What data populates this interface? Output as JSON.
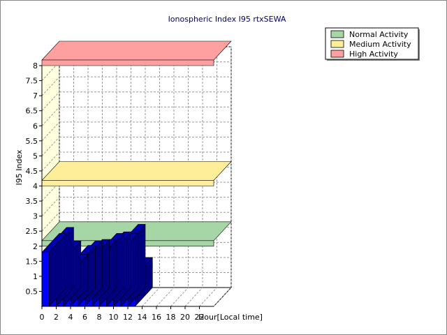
{
  "chart_data": {
    "type": "bar",
    "title": "Ionospheric Index I95 rtxSEWA",
    "xlabel": "Hour[Local time]",
    "ylabel": "I95 Index",
    "x_ticks": [
      "0",
      "2",
      "4",
      "6",
      "8",
      "10",
      "12",
      "14",
      "16",
      "18",
      "20",
      "22"
    ],
    "y_ticks": [
      "0.5",
      "1",
      "1.5",
      "2",
      "2.5",
      "3",
      "3.5",
      "4",
      "4.5",
      "5",
      "5.5",
      "6",
      "6.5",
      "7",
      "7.5",
      "8"
    ],
    "ylim": [
      0,
      8
    ],
    "xlim": [
      0,
      24
    ],
    "series": [
      {
        "values": [
          1.8,
          2.0,
          1.55,
          1.1,
          1.4,
          1.55,
          1.6,
          1.6,
          1.8,
          1.85,
          1.8,
          2.1,
          1.0
        ],
        "color": "#0000ff"
      }
    ],
    "activity_bands": [
      {
        "name": "Normal Activity",
        "value": 2.0,
        "color": "#a6d5a6"
      },
      {
        "name": "Medium Activity",
        "value": 4.0,
        "color": "#ffee99"
      },
      {
        "name": "High Activity",
        "value": 8.0,
        "color": "#ffa0a0"
      }
    ],
    "legend_position": "top-right",
    "grid": true,
    "style": "3d"
  }
}
